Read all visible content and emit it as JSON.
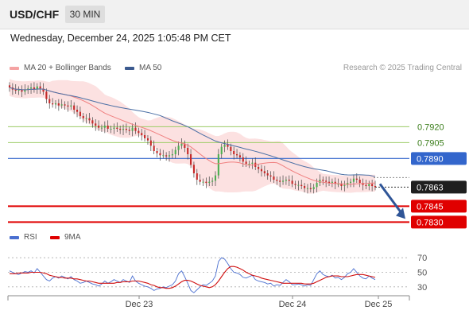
{
  "header": {
    "pair": "USD/CHF",
    "timeframe": "30 MIN"
  },
  "timestamp": "Wednesday, December 24, 2025 1:05:48 PM CET",
  "legend": {
    "ma20": "MA 20 + Bollinger Bands",
    "ma50": "MA 50",
    "rsi": "RSI",
    "rsi_ma": "9MA"
  },
  "credit": "Research © 2025 Trading Central",
  "colors": {
    "bb_fill": "#fbd7d7",
    "ma20": "#f08080",
    "ma50": "#4a6fa5",
    "up_candle": "#4caf50",
    "down_candle": "#c62828",
    "support": "#e00000",
    "pivot": "#3366cc",
    "resistance": "#9ccc65",
    "arrow": "#2f5597",
    "rsi": "#4a6fd0",
    "rsi_ma": "#d01010"
  },
  "chart_data": [
    {
      "type": "candlestick",
      "title": "USD/CHF",
      "timeframe": "30 MIN",
      "x_ticks": [
        "Dec 23",
        "Dec 24",
        "Dec 25"
      ],
      "ylim": [
        0.7822,
        0.7972
      ],
      "last_price": "0.7863",
      "levels": [
        {
          "label": "0.7920",
          "value": 0.792,
          "kind": "resistance"
        },
        {
          "label": "0.7905",
          "value": 0.7905,
          "kind": "resistance"
        },
        {
          "label": "0.7890",
          "value": 0.789,
          "kind": "pivot"
        },
        {
          "label": "0.7845",
          "value": 0.7845,
          "kind": "support"
        },
        {
          "label": "0.7830",
          "value": 0.783,
          "kind": "support"
        }
      ],
      "forecast": {
        "direction": "down",
        "target": 0.783
      },
      "closes": [
        0.7957,
        0.7955,
        0.7954,
        0.7955,
        0.7953,
        0.7955,
        0.7956,
        0.7957,
        0.7955,
        0.7958,
        0.7956,
        0.7953,
        0.7946,
        0.7942,
        0.7941,
        0.7942,
        0.794,
        0.7941,
        0.794,
        0.7939,
        0.794,
        0.7936,
        0.7934,
        0.793,
        0.7928,
        0.7928,
        0.7926,
        0.7923,
        0.7921,
        0.7919,
        0.7919,
        0.7921,
        0.7918,
        0.7918,
        0.7919,
        0.7918,
        0.7917,
        0.7918,
        0.7917,
        0.7916,
        0.7919,
        0.7916,
        0.7914,
        0.7912,
        0.7909,
        0.7907,
        0.7902,
        0.7897,
        0.7895,
        0.7893,
        0.7893,
        0.7892,
        0.7893,
        0.7894,
        0.7898,
        0.7902,
        0.7904,
        0.79,
        0.7894,
        0.7884,
        0.7876,
        0.787,
        0.7868,
        0.7868,
        0.7867,
        0.7868,
        0.7869,
        0.7874,
        0.7894,
        0.7901,
        0.7903,
        0.7901,
        0.7897,
        0.7894,
        0.7893,
        0.7891,
        0.7887,
        0.7885,
        0.7885,
        0.7886,
        0.7882,
        0.788,
        0.7878,
        0.7876,
        0.7874,
        0.7873,
        0.787,
        0.7869,
        0.7868,
        0.7869,
        0.787,
        0.7869,
        0.7866,
        0.7865,
        0.7865,
        0.7864,
        0.7862,
        0.7862,
        0.7861,
        0.7863,
        0.7867,
        0.787,
        0.7869,
        0.7868,
        0.7867,
        0.7868,
        0.7866,
        0.7866,
        0.7864,
        0.7865,
        0.7867,
        0.7868,
        0.7871,
        0.787,
        0.7867,
        0.7865,
        0.7864,
        0.7866,
        0.7864,
        0.7863
      ]
    },
    {
      "type": "line",
      "title": "RSI",
      "y_ticks": [
        30,
        50,
        70
      ],
      "ylim": [
        20,
        80
      ],
      "series": [
        {
          "name": "RSI",
          "values": [
            52,
            50,
            48,
            47,
            49,
            51,
            50,
            52,
            49,
            55,
            50,
            45,
            40,
            38,
            42,
            44,
            42,
            45,
            43,
            41,
            44,
            40,
            38,
            35,
            36,
            38,
            36,
            34,
            33,
            31,
            34,
            38,
            35,
            37,
            40,
            38,
            36,
            40,
            38,
            36,
            45,
            38,
            35,
            33,
            31,
            30,
            28,
            25,
            27,
            28,
            30,
            29,
            31,
            33,
            38,
            48,
            52,
            44,
            35,
            25,
            22,
            26,
            30,
            33,
            32,
            35,
            38,
            45,
            65,
            70,
            68,
            62,
            55,
            50,
            49,
            47,
            43,
            42,
            44,
            46,
            40,
            38,
            37,
            36,
            34,
            35,
            31,
            33,
            32,
            36,
            40,
            37,
            33,
            33,
            34,
            33,
            31,
            33,
            32,
            40,
            48,
            52,
            47,
            45,
            44,
            46,
            42,
            43,
            40,
            43,
            48,
            50,
            55,
            50,
            45,
            42,
            41,
            45,
            42,
            40
          ]
        },
        {
          "name": "9MA",
          "values": [
            48,
            48,
            48,
            49,
            49,
            49,
            49,
            50,
            50,
            50,
            50,
            49,
            48,
            46,
            45,
            44,
            43,
            43,
            42,
            42,
            42,
            41,
            41,
            40,
            39,
            38,
            38,
            37,
            36,
            35,
            35,
            35,
            35,
            35,
            35,
            36,
            36,
            37,
            37,
            37,
            38,
            38,
            38,
            37,
            36,
            35,
            33,
            32,
            30,
            29,
            29,
            28,
            28,
            29,
            31,
            34,
            37,
            39,
            39,
            38,
            36,
            34,
            32,
            31,
            30,
            29,
            30,
            33,
            38,
            44,
            50,
            55,
            58,
            58,
            57,
            55,
            53,
            50,
            48,
            46,
            45,
            44,
            42,
            41,
            40,
            39,
            38,
            37,
            36,
            35,
            35,
            35,
            35,
            35,
            35,
            35,
            34,
            34,
            34,
            35,
            37,
            39,
            41,
            43,
            44,
            45,
            45,
            45,
            44,
            44,
            44,
            45,
            46,
            47,
            47,
            47,
            46,
            45,
            44,
            43
          ]
        }
      ]
    }
  ]
}
